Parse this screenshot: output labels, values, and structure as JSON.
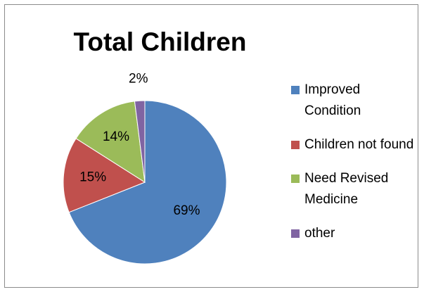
{
  "chart_data": {
    "type": "pie",
    "title": "Total Children",
    "legend_position": "right",
    "slices": [
      {
        "name": "Improved Condition",
        "value": 69,
        "label": "69%",
        "color": "#4f81bd"
      },
      {
        "name": "Children not found",
        "value": 15,
        "label": "15%",
        "color": "#c0504d"
      },
      {
        "name": "Need Revised Medicine",
        "value": 14,
        "label": "14%",
        "color": "#9bbb59"
      },
      {
        "name": "other",
        "value": 2,
        "label": "2%",
        "color": "#8064a2"
      }
    ]
  }
}
